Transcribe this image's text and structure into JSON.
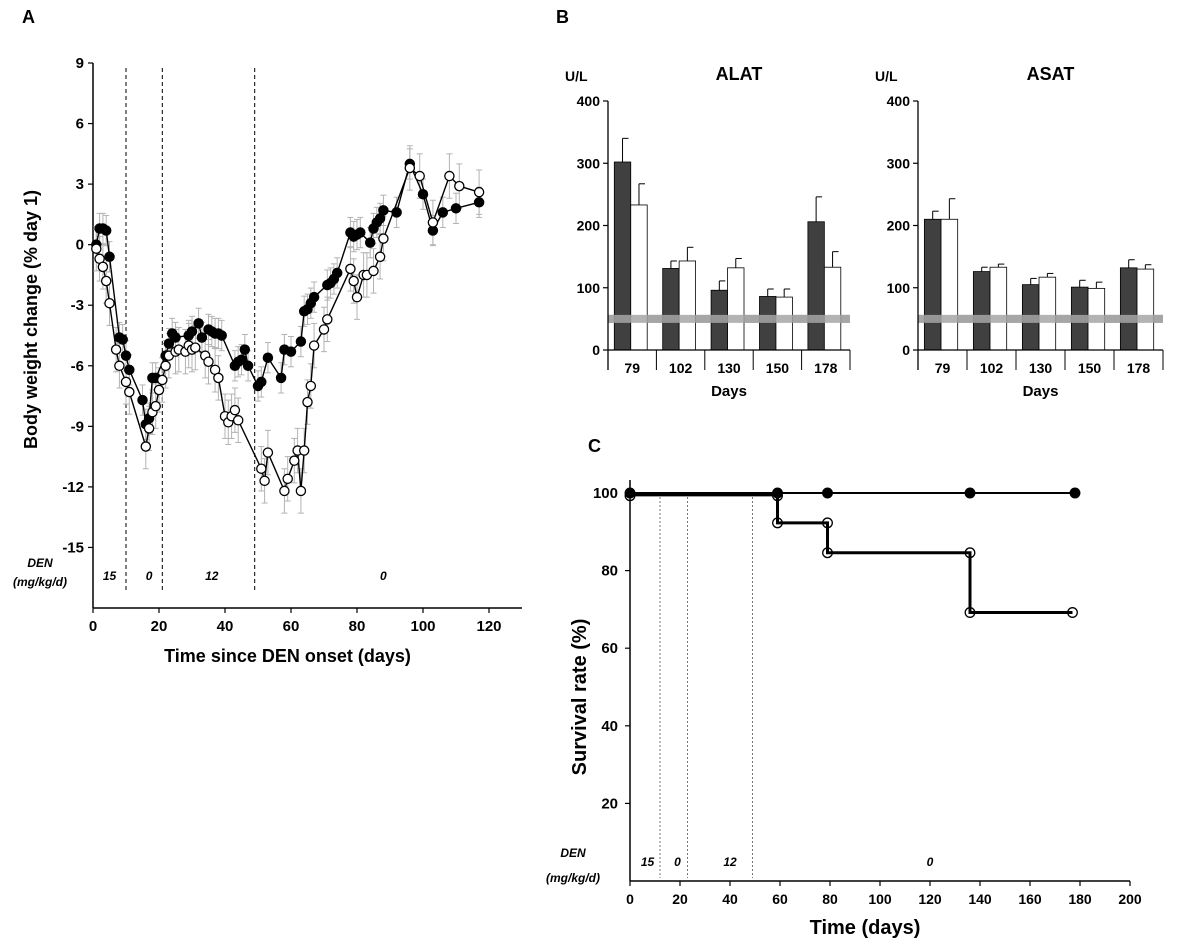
{
  "panels": {
    "a": "A",
    "b": "B",
    "c": "C"
  },
  "chart_data": [
    {
      "id": "A",
      "type": "line",
      "ylabel": "Body weight change (% day 1)",
      "xlabel": "Time since DEN onset (days)",
      "xlim": [
        0,
        130
      ],
      "ylim": [
        -18,
        9
      ],
      "xticks": [
        0,
        20,
        40,
        60,
        80,
        100,
        120
      ],
      "yticks": [
        -15,
        -12,
        -9,
        -6,
        -3,
        0,
        3,
        6,
        9
      ],
      "phase_lines_x": [
        10,
        21,
        49
      ],
      "den_title": [
        "DEN",
        "(mg/kg/d)"
      ],
      "den_doses": [
        {
          "label": "15",
          "x": 5
        },
        {
          "label": "0",
          "x": 17
        },
        {
          "label": "12",
          "x": 36
        },
        {
          "label": "0",
          "x": 88
        }
      ],
      "series": [
        {
          "marker": "filled",
          "points": [
            [
              1,
              0.0
            ],
            [
              2,
              0.8
            ],
            [
              3,
              0.8
            ],
            [
              4,
              0.7
            ],
            [
              5,
              -0.6
            ],
            [
              8,
              -4.6
            ],
            [
              9,
              -4.7
            ],
            [
              10,
              -5.5
            ],
            [
              11,
              -6.2
            ],
            [
              15,
              -7.7
            ],
            [
              16,
              -8.9
            ],
            [
              17,
              -8.6
            ],
            [
              18,
              -6.6
            ],
            [
              19,
              -6.6
            ],
            [
              22,
              -5.5
            ],
            [
              23,
              -4.9
            ],
            [
              24,
              -4.4
            ],
            [
              25,
              -4.6
            ],
            [
              29,
              -4.5
            ],
            [
              30,
              -4.3
            ],
            [
              32,
              -3.9
            ],
            [
              33,
              -4.6
            ],
            [
              35,
              -4.2
            ],
            [
              36,
              -4.3
            ],
            [
              37,
              -4.4
            ],
            [
              38,
              -4.4
            ],
            [
              39,
              -4.5
            ],
            [
              43,
              -6.0
            ],
            [
              44,
              -5.8
            ],
            [
              45,
              -5.7
            ],
            [
              46,
              -5.2
            ],
            [
              47,
              -6.0
            ],
            [
              50,
              -7.0
            ],
            [
              51,
              -6.8
            ],
            [
              53,
              -5.6
            ],
            [
              57,
              -6.6
            ],
            [
              58,
              -5.2
            ],
            [
              60,
              -5.3
            ],
            [
              63,
              -4.8
            ],
            [
              64,
              -3.3
            ],
            [
              65,
              -3.2
            ],
            [
              66,
              -2.9
            ],
            [
              67,
              -2.6
            ],
            [
              71,
              -2.0
            ],
            [
              72,
              -1.9
            ],
            [
              73,
              -1.7
            ],
            [
              74,
              -1.4
            ],
            [
              78,
              0.6
            ],
            [
              79,
              0.4
            ],
            [
              80,
              0.5
            ],
            [
              81,
              0.6
            ],
            [
              84,
              0.1
            ],
            [
              85,
              0.8
            ],
            [
              86,
              1.1
            ],
            [
              87,
              1.3
            ],
            [
              88,
              1.7
            ],
            [
              92,
              1.6
            ],
            [
              96,
              4.0
            ],
            [
              100,
              2.5
            ],
            [
              103,
              0.7
            ],
            [
              106,
              1.6
            ],
            [
              110,
              1.8
            ],
            [
              117,
              2.1
            ]
          ]
        },
        {
          "marker": "open",
          "points": [
            [
              1,
              -0.2
            ],
            [
              2,
              -0.7
            ],
            [
              3,
              -1.1
            ],
            [
              4,
              -1.8
            ],
            [
              5,
              -2.9
            ],
            [
              7,
              -5.2
            ],
            [
              8,
              -6.0
            ],
            [
              10,
              -6.8
            ],
            [
              11,
              -7.3
            ],
            [
              16,
              -10.0
            ],
            [
              17,
              -9.1
            ],
            [
              18,
              -8.3
            ],
            [
              19,
              -8.0
            ],
            [
              20,
              -7.2
            ],
            [
              21,
              -6.7
            ],
            [
              22,
              -6.0
            ],
            [
              23,
              -5.5
            ],
            [
              25,
              -5.3
            ],
            [
              26,
              -5.2
            ],
            [
              28,
              -5.3
            ],
            [
              29,
              -5.0
            ],
            [
              30,
              -5.2
            ],
            [
              31,
              -5.1
            ],
            [
              34,
              -5.5
            ],
            [
              35,
              -5.8
            ],
            [
              37,
              -6.2
            ],
            [
              38,
              -6.6
            ],
            [
              40,
              -8.5
            ],
            [
              41,
              -8.8
            ],
            [
              42,
              -8.5
            ],
            [
              43,
              -8.2
            ],
            [
              44,
              -8.7
            ],
            [
              51,
              -11.1
            ],
            [
              52,
              -11.7
            ],
            [
              53,
              -10.3
            ],
            [
              58,
              -12.2
            ],
            [
              59,
              -11.6
            ],
            [
              61,
              -10.7
            ],
            [
              62,
              -10.2
            ],
            [
              63,
              -12.2
            ],
            [
              64,
              -10.2
            ],
            [
              65,
              -7.8
            ],
            [
              66,
              -7.0
            ],
            [
              67,
              -5.0
            ],
            [
              70,
              -4.2
            ],
            [
              71,
              -3.7
            ],
            [
              78,
              -1.2
            ],
            [
              79,
              -1.8
            ],
            [
              80,
              -2.6
            ],
            [
              82,
              -1.5
            ],
            [
              83,
              -1.5
            ],
            [
              85,
              -1.3
            ],
            [
              87,
              -0.6
            ],
            [
              88,
              0.3
            ],
            [
              96,
              3.8
            ],
            [
              99,
              3.4
            ],
            [
              103,
              1.1
            ],
            [
              108,
              3.4
            ],
            [
              111,
              2.9
            ],
            [
              117,
              2.6
            ]
          ]
        }
      ]
    },
    {
      "id": "B-ALAT",
      "type": "bar",
      "title": "ALAT",
      "unit": "U/L",
      "xlabel": "Days",
      "categories": [
        "79",
        "102",
        "130",
        "150",
        "178"
      ],
      "ylim": [
        0,
        400
      ],
      "yticks": [
        0,
        100,
        200,
        300,
        400
      ],
      "reference_line": 50,
      "series": [
        {
          "fill": "dark",
          "values": [
            302,
            131,
            96,
            86,
            206
          ],
          "errors": [
            38,
            12,
            15,
            12,
            40
          ]
        },
        {
          "fill": "white",
          "values": [
            233,
            143,
            132,
            85,
            133
          ],
          "errors": [
            34,
            22,
            15,
            13,
            25
          ]
        }
      ]
    },
    {
      "id": "B-ASAT",
      "type": "bar",
      "title": "ASAT",
      "unit": "U/L",
      "xlabel": "Days",
      "categories": [
        "79",
        "102",
        "130",
        "150",
        "178"
      ],
      "ylim": [
        0,
        400
      ],
      "yticks": [
        0,
        100,
        200,
        300,
        400
      ],
      "reference_line": 50,
      "series": [
        {
          "fill": "dark",
          "values": [
            210,
            126,
            105,
            101,
            132
          ],
          "errors": [
            13,
            7,
            10,
            11,
            13
          ]
        },
        {
          "fill": "white",
          "values": [
            210,
            133,
            117,
            99,
            130
          ],
          "errors": [
            33,
            5,
            6,
            10,
            7
          ]
        }
      ]
    },
    {
      "id": "C",
      "type": "line",
      "ylabel": "Survival rate (%)",
      "xlabel": "Time (days)",
      "xlim": [
        0,
        200
      ],
      "ylim": [
        0,
        100
      ],
      "xticks": [
        0,
        20,
        40,
        60,
        80,
        100,
        120,
        140,
        160,
        180,
        200
      ],
      "yticks": [
        20,
        40,
        60,
        80,
        100
      ],
      "phase_lines_x": [
        12,
        23,
        49
      ],
      "den_title": [
        "DEN",
        "(mg/kg/d)"
      ],
      "den_doses": [
        {
          "label": "15",
          "x": 7
        },
        {
          "label": "0",
          "x": 19
        },
        {
          "label": "12",
          "x": 40
        },
        {
          "label": "0",
          "x": 120
        }
      ],
      "series": [
        {
          "marker": "filled",
          "steps": [
            [
              0,
              100
            ],
            [
              59,
              100
            ],
            [
              79,
              100
            ],
            [
              136,
              100
            ],
            [
              178,
              100
            ]
          ],
          "markers": [
            [
              0,
              100
            ],
            [
              59,
              100
            ],
            [
              79,
              100
            ],
            [
              136,
              100
            ],
            [
              178,
              100
            ]
          ]
        },
        {
          "marker": "open",
          "steps": [
            [
              0,
              99.5
            ],
            [
              59,
              99.5
            ],
            [
              59,
              92.3
            ],
            [
              79,
              92.3
            ],
            [
              79,
              84.6
            ],
            [
              136,
              84.6
            ],
            [
              136,
              69.2
            ],
            [
              177,
              69.2
            ]
          ],
          "markers": [
            [
              0,
              99.3
            ],
            [
              59,
              99.3
            ],
            [
              59,
              92.3
            ],
            [
              79,
              92.3
            ],
            [
              79,
              84.6
            ],
            [
              136,
              84.6
            ],
            [
              136,
              69.2
            ],
            [
              177,
              69.2
            ]
          ]
        }
      ]
    }
  ]
}
